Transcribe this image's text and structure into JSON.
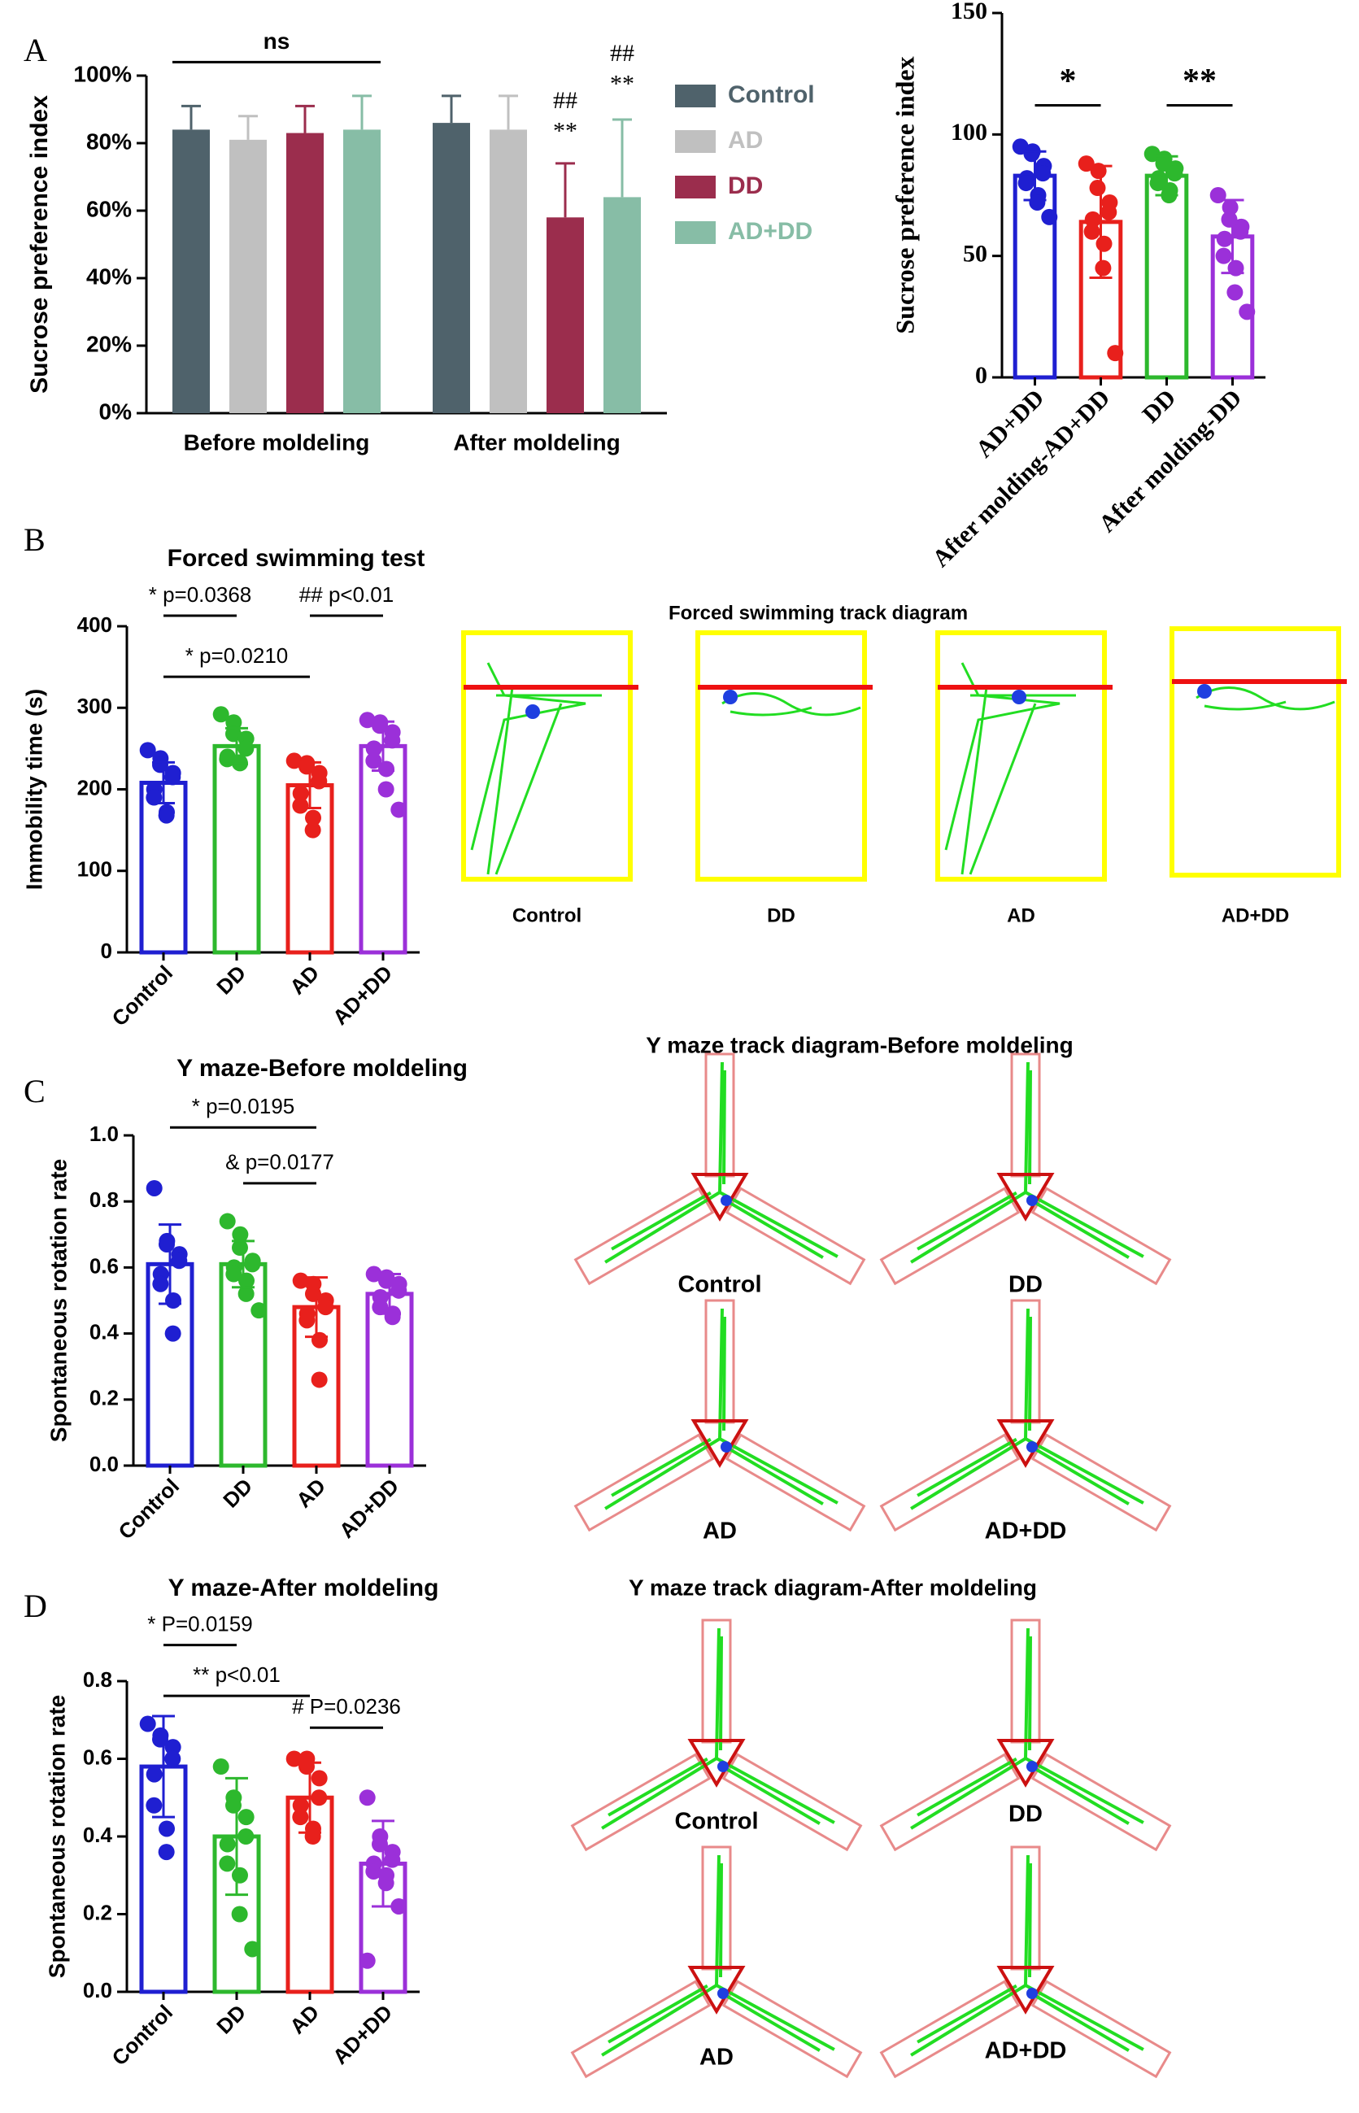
{
  "panel_labels": [
    "A",
    "B",
    "C",
    "D"
  ],
  "chart_data": [
    {
      "type": "bar",
      "ylabel": "Sucrose preference index",
      "categories": [
        "Before moldeling",
        "After moldeling"
      ],
      "series": [
        {
          "name": "Control",
          "color": "#4f626b",
          "values": [
            84,
            86
          ],
          "errors": [
            7,
            8
          ]
        },
        {
          "name": "AD",
          "color": "#c0c0c0",
          "values": [
            81,
            84
          ],
          "errors": [
            7,
            10
          ]
        },
        {
          "name": "DD",
          "color": "#9b2d4d",
          "values": [
            83,
            58
          ],
          "errors": [
            8,
            16
          ]
        },
        {
          "name": "AD+DD",
          "color": "#87bda6",
          "values": [
            84,
            64
          ],
          "errors": [
            10,
            23
          ]
        }
      ],
      "ylim": [
        0,
        100
      ],
      "yticks": [
        {
          "value": 0,
          "label": "0%"
        },
        {
          "value": 20,
          "label": "20%"
        },
        {
          "value": 40,
          "label": "40%"
        },
        {
          "value": 60,
          "label": "60%"
        },
        {
          "value": 80,
          "label": "80%"
        },
        {
          "value": 100,
          "label": "100%"
        }
      ],
      "annotations": [
        "ns",
        "##",
        "**",
        "##",
        "**"
      ]
    },
    {
      "type": "bar",
      "ylabel": "Sucrose preference index",
      "categories": [
        "AD+DD",
        "After molding-AD+DD",
        "DD",
        "After molding-DD"
      ],
      "colors": [
        "#1f1fd1",
        "#e8201c",
        "#2db82d",
        "#9b30d9"
      ],
      "values": [
        83,
        64,
        83,
        58
      ],
      "errors": [
        10,
        23,
        8,
        15
      ],
      "points": [
        [
          95,
          93,
          92,
          87,
          84,
          82,
          80,
          75,
          72,
          66
        ],
        [
          88,
          85,
          78,
          72,
          68,
          65,
          60,
          55,
          45,
          10
        ],
        [
          92,
          90,
          88,
          86,
          84,
          82,
          80,
          77,
          75
        ],
        [
          75,
          70,
          65,
          62,
          60,
          57,
          50,
          45,
          35,
          27
        ]
      ],
      "ylim": [
        0,
        150
      ],
      "yticks": [
        0,
        50,
        100,
        150
      ],
      "annotations": [
        "*",
        "**"
      ]
    },
    {
      "type": "bar",
      "title": "Forced swimming test",
      "ylabel": "Immobility time (s)",
      "categories": [
        "Control",
        "DD",
        "AD",
        "AD+DD"
      ],
      "colors": [
        "#1f1fd1",
        "#2db82d",
        "#e8201c",
        "#9b30d9"
      ],
      "values": [
        208,
        253,
        205,
        253
      ],
      "errors": [
        25,
        22,
        28,
        30
      ],
      "points": [
        [
          248,
          238,
          230,
          220,
          215,
          200,
          190,
          172,
          168
        ],
        [
          292,
          282,
          268,
          262,
          250,
          240,
          237,
          232,
          233
        ],
        [
          235,
          232,
          228,
          220,
          210,
          195,
          180,
          165,
          150
        ],
        [
          285,
          282,
          278,
          270,
          260,
          250,
          235,
          225,
          200,
          175
        ]
      ],
      "ylim": [
        0,
        400
      ],
      "yticks": [
        0,
        100,
        200,
        300,
        400
      ],
      "annotations": [
        "* p=0.0368",
        "## p<0.01",
        "* p=0.0210"
      ]
    },
    {
      "type": "bar",
      "title": "Y maze-Before moldeling",
      "ylabel": "Spontaneous rotation rate",
      "categories": [
        "Control",
        "DD",
        "AD",
        "AD+DD"
      ],
      "colors": [
        "#1f1fd1",
        "#2db82d",
        "#e8201c",
        "#9b30d9"
      ],
      "values": [
        0.61,
        0.61,
        0.48,
        0.52
      ],
      "errors": [
        0.12,
        0.07,
        0.09,
        0.06
      ],
      "points": [
        [
          0.84,
          0.68,
          0.67,
          0.64,
          0.62,
          0.58,
          0.55,
          0.5,
          0.4
        ],
        [
          0.74,
          0.7,
          0.66,
          0.62,
          0.61,
          0.6,
          0.58,
          0.56,
          0.52,
          0.47
        ],
        [
          0.56,
          0.55,
          0.52,
          0.5,
          0.48,
          0.46,
          0.44,
          0.38,
          0.26
        ],
        [
          0.58,
          0.57,
          0.56,
          0.55,
          0.53,
          0.51,
          0.48,
          0.46,
          0.45
        ]
      ],
      "ylim": [
        0,
        1
      ],
      "yticks": [
        {
          "value": 0,
          "label": "0.0"
        },
        0.2,
        0.4,
        0.6,
        0.8,
        {
          "value": 1,
          "label": "1.0"
        }
      ],
      "annotations": [
        "* p=0.0195",
        "& p=0.0177"
      ]
    },
    {
      "type": "bar",
      "title": "Y maze-After moldeling",
      "ylabel": "Spontaneous rotation rate",
      "categories": [
        "Control",
        "DD",
        "AD",
        "AD+DD"
      ],
      "colors": [
        "#1f1fd1",
        "#2db82d",
        "#e8201c",
        "#9b30d9"
      ],
      "values": [
        0.58,
        0.4,
        0.5,
        0.33
      ],
      "errors": [
        0.13,
        0.15,
        0.09,
        0.11
      ],
      "points": [
        [
          0.69,
          0.66,
          0.65,
          0.63,
          0.6,
          0.56,
          0.48,
          0.42,
          0.36
        ],
        [
          0.58,
          0.5,
          0.48,
          0.45,
          0.4,
          0.38,
          0.33,
          0.3,
          0.2,
          0.11
        ],
        [
          0.6,
          0.6,
          0.58,
          0.55,
          0.5,
          0.48,
          0.45,
          0.42,
          0.4
        ],
        [
          0.5,
          0.4,
          0.38,
          0.36,
          0.34,
          0.33,
          0.31,
          0.3,
          0.28,
          0.22,
          0.08
        ]
      ],
      "ylim": [
        0,
        0.8
      ],
      "yticks": [
        {
          "value": 0,
          "label": "0.0"
        },
        0.2,
        0.4,
        0.6,
        0.8
      ],
      "annotations": [
        "* P=0.0159",
        "** p<0.01",
        "# P=0.0236"
      ]
    }
  ],
  "track_diagrams": [
    {
      "title": "Forced swimming track diagram",
      "labels": [
        "Control",
        "DD",
        "AD",
        "AD+DD"
      ]
    },
    {
      "title": "Y maze track diagram-Before moldeling",
      "labels": [
        "Control",
        "DD",
        "AD",
        "AD+DD"
      ]
    },
    {
      "title": "Y maze track diagram-After moldeling",
      "labels": [
        "Control",
        "DD",
        "AD",
        "AD+DD"
      ]
    }
  ]
}
